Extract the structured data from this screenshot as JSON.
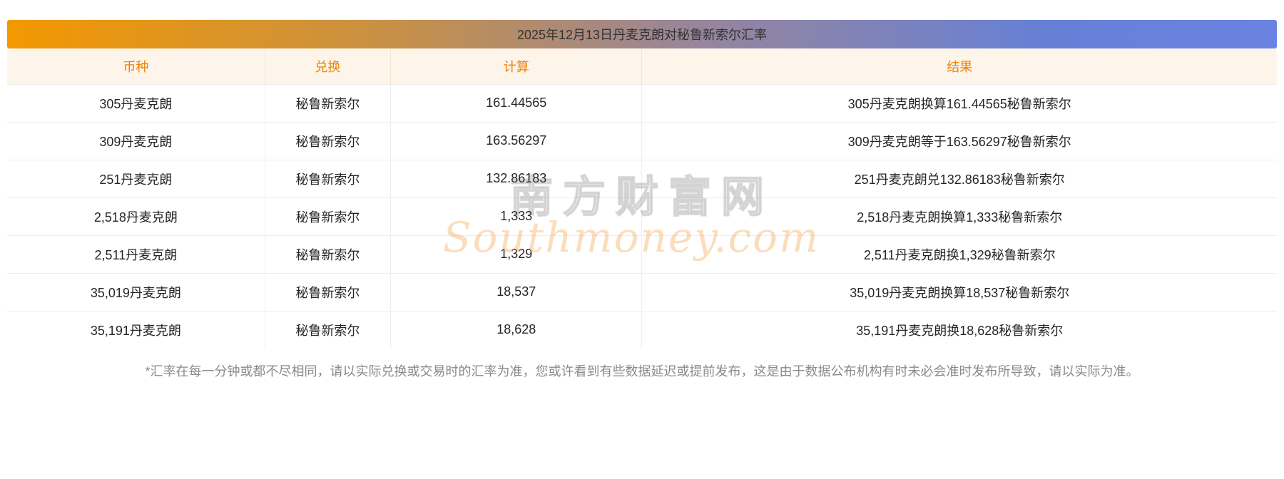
{
  "header": {
    "title": "2025年12月13日丹麦克朗对秘鲁新索尔汇率"
  },
  "table": {
    "columns": [
      {
        "label": "币种"
      },
      {
        "label": "兑换"
      },
      {
        "label": "计算"
      },
      {
        "label": "结果"
      }
    ],
    "rows": [
      [
        "305丹麦克朗",
        "秘鲁新索尔",
        "161.44565",
        "305丹麦克朗换算161.44565秘鲁新索尔"
      ],
      [
        "309丹麦克朗",
        "秘鲁新索尔",
        "163.56297",
        "309丹麦克朗等于163.56297秘鲁新索尔"
      ],
      [
        "251丹麦克朗",
        "秘鲁新索尔",
        "132.86183",
        "251丹麦克朗兑132.86183秘鲁新索尔"
      ],
      [
        "2,518丹麦克朗",
        "秘鲁新索尔",
        "1,333",
        "2,518丹麦克朗换算1,333秘鲁新索尔"
      ],
      [
        "2,511丹麦克朗",
        "秘鲁新索尔",
        "1,329",
        "2,511丹麦克朗换1,329秘鲁新索尔"
      ],
      [
        "35,019丹麦克朗",
        "秘鲁新索尔",
        "18,537",
        "35,019丹麦克朗换算18,537秘鲁新索尔"
      ],
      [
        "35,191丹麦克朗",
        "秘鲁新索尔",
        "18,628",
        "35,191丹麦克朗换18,628秘鲁新索尔"
      ]
    ]
  },
  "watermark": {
    "cn": "南方财富网",
    "en": "Southmoney.com"
  },
  "footnote": "*汇率在每一分钟或都不尽相同，请以实际兑换或交易时的汇率为准，您或许看到有些数据延迟或提前发布，这是由于数据公布机构有时未必会准时发布所导致，请以实际为准。",
  "colors": {
    "gradient_start": "#f39800",
    "gradient_end": "#6a83e2",
    "header_bg": "#fdf4ea",
    "header_text": "#f08200",
    "body_text": "#262626",
    "footnote_text": "#8a8a8a"
  }
}
